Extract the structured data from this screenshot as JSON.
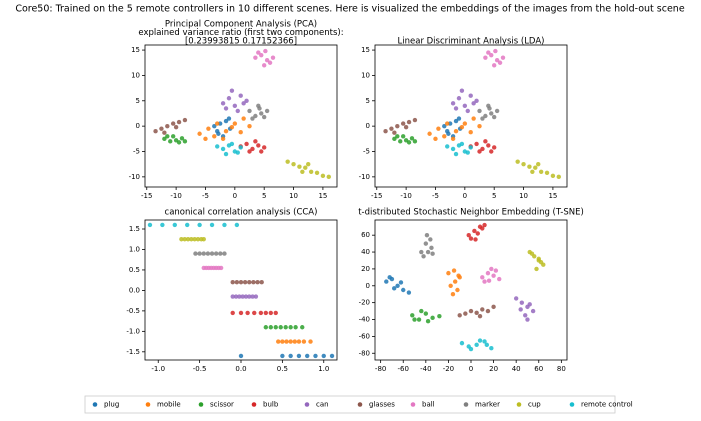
{
  "title": "Core50: Trained on the 5 remote controllers in 10 different scenes. Here is visualized the embeddings of the images from the hold-out scene",
  "chart_data": [
    {
      "type": "scatter",
      "title": "Principal Component Analysis (PCA)",
      "subtitle": [
        "explained variance ratio (first two components):",
        "[0.23993815 0.17152366]"
      ],
      "xlim": [
        -15.3,
        17.4
      ],
      "ylim": [
        -12,
        16
      ],
      "xticks": [
        -15,
        -10,
        -5,
        0,
        5,
        10,
        15
      ],
      "yticks": [
        -10,
        -5,
        0,
        5,
        10,
        15
      ],
      "series": [
        {
          "name": "plug",
          "color": "#1f77b4",
          "x": [
            -3,
            -2.5,
            -1.5,
            -0.8,
            -2,
            -3.5,
            -1,
            -2.8
          ],
          "values": [
            -1,
            0.5,
            1,
            -0.5,
            -2,
            0,
            1.5,
            -1.5
          ]
        },
        {
          "name": "mobile",
          "color": "#ff7f0e",
          "x": [
            -6,
            -4.5,
            -3,
            -1.5,
            0,
            1.5,
            2.5,
            -2,
            -5,
            -0.5,
            1,
            -3.5
          ],
          "values": [
            -1.5,
            -0.5,
            0.5,
            -1,
            0.5,
            1.5,
            0,
            -2.5,
            -2.5,
            -0.2,
            -1.2,
            -2
          ]
        },
        {
          "name": "scissor",
          "color": "#2ca02c",
          "x": [
            -12,
            -11,
            -10.5,
            -10,
            -9.5,
            -9,
            -11.5,
            -8.5
          ],
          "values": [
            -2.5,
            -3,
            -2,
            -2.8,
            -3.2,
            -2.4,
            -2,
            -3
          ]
        },
        {
          "name": "bulb",
          "color": "#d62728",
          "x": [
            1,
            2,
            3,
            4,
            5,
            2.5,
            3.5,
            4.5
          ],
          "values": [
            -4,
            -3.5,
            -4.5,
            -3.8,
            -4.2,
            -5,
            -3,
            -5
          ]
        },
        {
          "name": "can",
          "color": "#9467bd",
          "x": [
            -2,
            -1,
            0,
            1,
            2,
            -0.5,
            0.5,
            1.5,
            -1.5
          ],
          "values": [
            4.5,
            5.5,
            4,
            6,
            5,
            7,
            3,
            4.5,
            3.5
          ]
        },
        {
          "name": "glasses",
          "color": "#8c564b",
          "x": [
            -13.5,
            -12.5,
            -11.5,
            -10.5,
            -9.5,
            -8.5,
            -12,
            -10
          ],
          "values": [
            -1,
            -0.5,
            0,
            0.5,
            0.8,
            1.2,
            -1.3,
            -0.2
          ]
        },
        {
          "name": "ball",
          "color": "#e377c2",
          "x": [
            3.5,
            4.5,
            5.5,
            6,
            5,
            4,
            5.2,
            6.5
          ],
          "values": [
            13.5,
            14,
            13,
            12.5,
            12,
            14.5,
            14.8,
            13.5
          ]
        },
        {
          "name": "marker",
          "color": "#7f7f7f",
          "x": [
            2.5,
            3.5,
            4.5,
            5.5,
            3,
            4,
            5,
            4.2
          ],
          "values": [
            3,
            2,
            2.5,
            3,
            1.5,
            4,
            1.8,
            3.5
          ]
        },
        {
          "name": "cup",
          "color": "#bcbd22",
          "x": [
            9,
            10,
            11,
            12,
            13,
            14,
            15,
            16,
            12.5,
            11.5
          ],
          "values": [
            -7,
            -7.5,
            -8,
            -8.2,
            -9,
            -9.2,
            -9.8,
            -10,
            -7.5,
            -9
          ]
        },
        {
          "name": "remote control",
          "color": "#17becf",
          "x": [
            -3,
            -2,
            -1,
            0,
            1,
            -1.5,
            -0.5,
            0.5
          ],
          "values": [
            -4,
            -4.5,
            -3.8,
            -5,
            -4.2,
            -5.5,
            -3.5,
            -5.2
          ]
        }
      ]
    },
    {
      "type": "scatter",
      "title": "Linear Discriminant Analysis (LDA)",
      "xlim": [
        -15.3,
        17.4
      ],
      "ylim": [
        -12,
        16
      ],
      "xticks": [
        -15,
        -10,
        -5,
        0,
        5,
        10,
        15
      ],
      "yticks": [
        -10,
        -5,
        0,
        5,
        10,
        15
      ],
      "series": [
        {
          "name": "plug",
          "color": "#1f77b4",
          "x": [
            -3,
            -2.5,
            -1.5,
            -0.8,
            -2,
            -3.5,
            -1,
            -2.8
          ],
          "values": [
            -1,
            0.5,
            1,
            -0.5,
            -2,
            0,
            1.5,
            -1.5
          ]
        },
        {
          "name": "mobile",
          "color": "#ff7f0e",
          "x": [
            -6,
            -4.5,
            -3,
            -1.5,
            0,
            1.5,
            2.5,
            -2,
            -5,
            -0.5,
            1,
            -3.5
          ],
          "values": [
            -1.5,
            -0.5,
            0.5,
            -1,
            0.5,
            1.5,
            0,
            -2.5,
            -2.5,
            -0.2,
            -1.2,
            -2
          ]
        },
        {
          "name": "scissor",
          "color": "#2ca02c",
          "x": [
            -12,
            -11,
            -10.5,
            -10,
            -9.5,
            -9,
            -11.5,
            -8.5
          ],
          "values": [
            -2.5,
            -3,
            -2,
            -2.8,
            -3.2,
            -2.4,
            -2,
            -3
          ]
        },
        {
          "name": "bulb",
          "color": "#d62728",
          "x": [
            1,
            2,
            3,
            4,
            5,
            2.5,
            3.5,
            4.5
          ],
          "values": [
            -4,
            -3.5,
            -4.5,
            -3.8,
            -4.2,
            -5,
            -3,
            -5
          ]
        },
        {
          "name": "can",
          "color": "#9467bd",
          "x": [
            -2,
            -1,
            0,
            1,
            2,
            -0.5,
            0.5,
            1.5,
            -1.5
          ],
          "values": [
            4.5,
            5.5,
            4,
            6,
            5,
            7,
            3,
            4.5,
            3.5
          ]
        },
        {
          "name": "glasses",
          "color": "#8c564b",
          "x": [
            -13.5,
            -12.5,
            -11.5,
            -10.5,
            -9.5,
            -8.5,
            -12,
            -10
          ],
          "values": [
            -1,
            -0.5,
            0,
            0.5,
            0.8,
            1.2,
            -1.3,
            -0.2
          ]
        },
        {
          "name": "ball",
          "color": "#e377c2",
          "x": [
            3.5,
            4.5,
            5.5,
            6,
            5,
            4,
            5.2,
            6.5
          ],
          "values": [
            13.5,
            14,
            13,
            12.5,
            12,
            14.5,
            14.8,
            13.5
          ]
        },
        {
          "name": "marker",
          "color": "#7f7f7f",
          "x": [
            2.5,
            3.5,
            4.5,
            5.5,
            3,
            4,
            5,
            4.2
          ],
          "values": [
            3,
            2,
            2.5,
            3,
            1.5,
            4,
            1.8,
            3.5
          ]
        },
        {
          "name": "cup",
          "color": "#bcbd22",
          "x": [
            9,
            10,
            11,
            12,
            13,
            14,
            15,
            16,
            12.5,
            11.5
          ],
          "values": [
            -7,
            -7.5,
            -8,
            -8.2,
            -9,
            -9.2,
            -9.8,
            -10,
            -7.5,
            -9
          ]
        },
        {
          "name": "remote control",
          "color": "#17becf",
          "x": [
            -3,
            -2,
            -1,
            0,
            1,
            -1.5,
            -0.5,
            0.5
          ],
          "values": [
            -4,
            -4.5,
            -3.8,
            -5,
            -4.2,
            -5.5,
            -3.5,
            -5.2
          ]
        }
      ]
    },
    {
      "type": "scatter",
      "title": "canonical correlation analysis (CCA)",
      "xlim": [
        -1.16,
        1.16
      ],
      "ylim": [
        -1.7,
        1.72
      ],
      "xticks": [
        {
          "value": -1,
          "label": "-1.0"
        },
        -0.5,
        {
          "value": 0,
          "label": "0.0"
        },
        0.5,
        {
          "value": 1,
          "label": "1.0"
        }
      ],
      "yticks": [
        -1.5,
        {
          "value": -1,
          "label": "-1.0"
        },
        -0.5,
        {
          "value": 0,
          "label": "0.0"
        },
        0.5,
        {
          "value": 1,
          "label": "1.0"
        },
        1.5
      ],
      "series": [
        {
          "name": "plug",
          "color": "#1f77b4",
          "x": [
            0,
            0.5,
            0.6,
            0.7,
            0.8,
            0.9,
            1.0,
            1.1
          ],
          "values": [
            -1.6,
            -1.6,
            -1.6,
            -1.6,
            -1.6,
            -1.6,
            -1.6,
            -1.6
          ]
        },
        {
          "name": "mobile",
          "color": "#ff7f0e",
          "x": [
            0.45,
            0.5,
            0.55,
            0.6,
            0.65,
            0.7,
            0.76,
            0.84
          ],
          "values": [
            -1.25,
            -1.25,
            -1.25,
            -1.25,
            -1.25,
            -1.25,
            -1.25,
            -1.25
          ]
        },
        {
          "name": "scissor",
          "color": "#2ca02c",
          "x": [
            0.3,
            0.36,
            0.42,
            0.48,
            0.54,
            0.6,
            0.66,
            0.74
          ],
          "values": [
            -0.9,
            -0.9,
            -0.9,
            -0.9,
            -0.9,
            -0.9,
            -0.9,
            -0.9
          ]
        },
        {
          "name": "bulb",
          "color": "#d62728",
          "x": [
            -0.1,
            0,
            0.08,
            0.16,
            0.24,
            0.3,
            0.36,
            0.42
          ],
          "values": [
            -0.55,
            -0.55,
            -0.55,
            -0.55,
            -0.55,
            -0.55,
            -0.55,
            -0.55
          ]
        },
        {
          "name": "can",
          "color": "#9467bd",
          "x": [
            -0.1,
            -0.06,
            -0.02,
            0.02,
            0.06,
            0.1,
            0.14,
            0.18
          ],
          "values": [
            -0.15,
            -0.15,
            -0.15,
            -0.15,
            -0.15,
            -0.15,
            -0.15,
            -0.15
          ]
        },
        {
          "name": "glasses",
          "color": "#8c564b",
          "x": [
            -0.1,
            -0.05,
            0,
            0.05,
            0.1,
            0.15,
            0.2,
            0.25
          ],
          "values": [
            0.2,
            0.2,
            0.2,
            0.2,
            0.2,
            0.2,
            0.2,
            0.2
          ]
        },
        {
          "name": "ball",
          "color": "#e377c2",
          "x": [
            -0.45,
            -0.42,
            -0.39,
            -0.36,
            -0.33,
            -0.3,
            -0.27,
            -0.24
          ],
          "values": [
            0.55,
            0.55,
            0.55,
            0.55,
            0.55,
            0.55,
            0.55,
            0.55
          ]
        },
        {
          "name": "marker",
          "color": "#7f7f7f",
          "x": [
            -0.55,
            -0.5,
            -0.45,
            -0.4,
            -0.35,
            -0.3,
            -0.25,
            -0.2
          ],
          "values": [
            0.9,
            0.9,
            0.9,
            0.9,
            0.9,
            0.9,
            0.9,
            0.9
          ]
        },
        {
          "name": "cup",
          "color": "#bcbd22",
          "x": [
            -0.72,
            -0.68,
            -0.64,
            -0.6,
            -0.56,
            -0.52,
            -0.48,
            -0.45
          ],
          "values": [
            1.25,
            1.25,
            1.25,
            1.25,
            1.25,
            1.25,
            1.25,
            1.25
          ]
        },
        {
          "name": "remote control",
          "color": "#17becf",
          "x": [
            -1.1,
            -0.95,
            -0.8,
            -0.65,
            -0.5,
            -0.35,
            -0.2,
            -0.05
          ],
          "values": [
            1.6,
            1.6,
            1.6,
            1.6,
            1.6,
            1.6,
            1.6,
            1.6
          ]
        }
      ]
    },
    {
      "type": "scatter",
      "title": "t-distributed Stochastic Neighbor Embedding (T-SNE)",
      "xlim": [
        -85,
        85
      ],
      "ylim": [
        -88,
        78
      ],
      "xticks": [
        -80,
        -60,
        -40,
        -20,
        0,
        20,
        40,
        60,
        80
      ],
      "yticks": [
        -80,
        -60,
        -40,
        -20,
        0,
        20,
        40,
        60
      ],
      "series": [
        {
          "name": "plug",
          "color": "#1f77b4",
          "x": [
            -75,
            -70,
            -65,
            -60,
            -55,
            -68,
            -62,
            -72
          ],
          "values": [
            5,
            8,
            0,
            -5,
            -8,
            -3,
            4,
            10
          ]
        },
        {
          "name": "mobile",
          "color": "#ff7f0e",
          "x": [
            -20,
            -15,
            -10,
            -18,
            -12,
            -16,
            -14,
            -11
          ],
          "values": [
            15,
            18,
            10,
            0,
            -5,
            -10,
            5,
            12
          ]
        },
        {
          "name": "scissor",
          "color": "#2ca02c",
          "x": [
            -52,
            -46,
            -40,
            -34,
            -28,
            -44,
            -38,
            -50
          ],
          "values": [
            -35,
            -40,
            -33,
            -38,
            -36,
            -30,
            -42,
            -40
          ]
        },
        {
          "name": "bulb",
          "color": "#d62728",
          "x": [
            -2,
            3,
            8,
            12,
            0,
            6,
            10,
            4
          ],
          "values": [
            60,
            65,
            70,
            72,
            56,
            62,
            68,
            55
          ]
        },
        {
          "name": "can",
          "color": "#9467bd",
          "x": [
            40,
            45,
            50,
            55,
            44,
            52,
            48,
            50
          ],
          "values": [
            -15,
            -20,
            -25,
            -30,
            -28,
            -22,
            -35,
            -40
          ]
        },
        {
          "name": "glasses",
          "color": "#8c564b",
          "x": [
            -10,
            -5,
            0,
            5,
            10,
            15,
            20,
            8
          ],
          "values": [
            -35,
            -33,
            -30,
            -32,
            -28,
            -30,
            -25,
            -36
          ]
        },
        {
          "name": "ball",
          "color": "#e377c2",
          "x": [
            10,
            15,
            20,
            25,
            12,
            18,
            22,
            16
          ],
          "values": [
            10,
            15,
            12,
            8,
            5,
            20,
            18,
            6
          ]
        },
        {
          "name": "marker",
          "color": "#7f7f7f",
          "x": [
            -42,
            -38,
            -35,
            -40,
            -36,
            -44,
            -34,
            -39
          ],
          "values": [
            35,
            40,
            45,
            50,
            55,
            40,
            38,
            60
          ]
        },
        {
          "name": "cup",
          "color": "#bcbd22",
          "x": [
            52,
            56,
            60,
            64,
            58,
            54,
            62,
            60
          ],
          "values": [
            40,
            35,
            30,
            25,
            20,
            38,
            28,
            32
          ]
        },
        {
          "name": "remote control",
          "color": "#17becf",
          "x": [
            -8,
            -2,
            5,
            12,
            18,
            0,
            8,
            14
          ],
          "values": [
            -68,
            -72,
            -70,
            -66,
            -74,
            -75,
            -65,
            -70
          ]
        }
      ]
    }
  ]
}
